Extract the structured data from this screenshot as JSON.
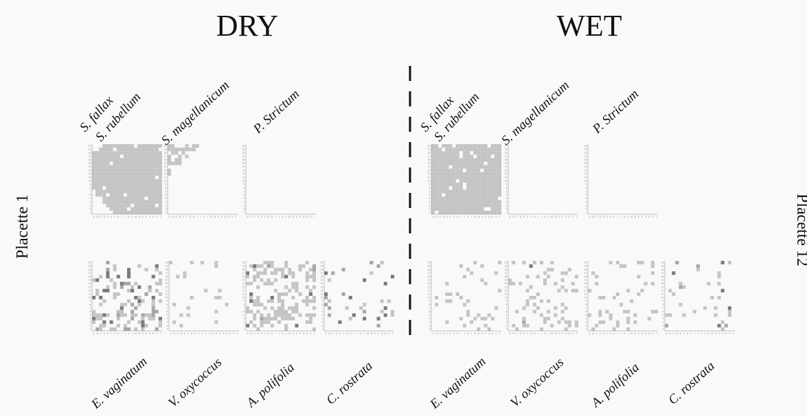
{
  "titles": {
    "dry": "DRY",
    "wet": "WET"
  },
  "side_labels": {
    "left": "Placette 1",
    "right": "Placette 12"
  },
  "species": {
    "top": [
      "S. fallax",
      "S. rubellum",
      "S. magellanicum",
      "P. Strictum"
    ],
    "bottom": [
      "E. vaginatum",
      "V. oxycoccus",
      "A. polifolia",
      "C. rostrata"
    ]
  },
  "colors": {
    "light": "#c4c4c4",
    "medium": "#a6a6a6",
    "dark": "#7a7a7a",
    "divider": "#111111"
  },
  "chart_data": {
    "type": "heatmap",
    "grid": {
      "cols": 20,
      "rows": 20
    },
    "x_tick_labels": [
      "A",
      "B",
      "C",
      "D",
      "E",
      "F",
      "G",
      "H",
      "I",
      "J",
      "K",
      "L",
      "M",
      "N",
      "O",
      "P",
      "Q",
      "R",
      "S",
      "T"
    ],
    "y_tick_labels": [
      "1",
      "2",
      "3",
      "4",
      "5",
      "6",
      "7",
      "8",
      "9",
      "10",
      "11",
      "12",
      "13",
      "14",
      "15",
      "16",
      "17",
      "18",
      "19",
      "20"
    ],
    "panels": [
      {
        "condition": "DRY",
        "species": "S. fallax + S. rubellum",
        "type": "fill",
        "pattern": "diag-fill",
        "holes": 14,
        "seed": 11
      },
      {
        "condition": "DRY",
        "species": "S. magellanicum",
        "type": "fill",
        "pattern": "corner",
        "seed": 5
      },
      {
        "condition": "DRY",
        "species": "P. Strictum",
        "type": "empty"
      },
      {
        "condition": "WET",
        "species": "S. fallax + S. rubellum",
        "type": "fill",
        "pattern": "full",
        "holes": 22,
        "seed": 3
      },
      {
        "condition": "WET",
        "species": "S. magellanicum",
        "type": "empty"
      },
      {
        "condition": "WET",
        "species": "P. Strictum",
        "type": "empty"
      },
      {
        "condition": "DRY",
        "species": "E. vaginatum",
        "type": "scatter",
        "density": 0.3,
        "dark": 0.18,
        "bottomBias": true,
        "seed": 21
      },
      {
        "condition": "DRY",
        "species": "V. oxycoccus",
        "type": "scatter",
        "density": 0.07,
        "dark": 0.0,
        "seed": 7
      },
      {
        "condition": "DRY",
        "species": "A. polifolia",
        "type": "scatter",
        "density": 0.38,
        "dark": 0.03,
        "seed": 13
      },
      {
        "condition": "DRY",
        "species": "C. rostrata",
        "type": "scatter",
        "density": 0.07,
        "dark": 0.3,
        "seed": 9
      },
      {
        "condition": "WET",
        "species": "E. vaginatum",
        "type": "scatter",
        "density": 0.07,
        "dark": 0.0,
        "seed": 17
      },
      {
        "condition": "WET",
        "species": "V. oxycoccus",
        "type": "scatter",
        "density": 0.2,
        "dark": 0.02,
        "seed": 23
      },
      {
        "condition": "WET",
        "species": "A. polifolia",
        "type": "scatter",
        "density": 0.14,
        "dark": 0.0,
        "seed": 29
      },
      {
        "condition": "WET",
        "species": "C. rostrata",
        "type": "scatter",
        "density": 0.06,
        "dark": 0.12,
        "seed": 31
      }
    ]
  }
}
